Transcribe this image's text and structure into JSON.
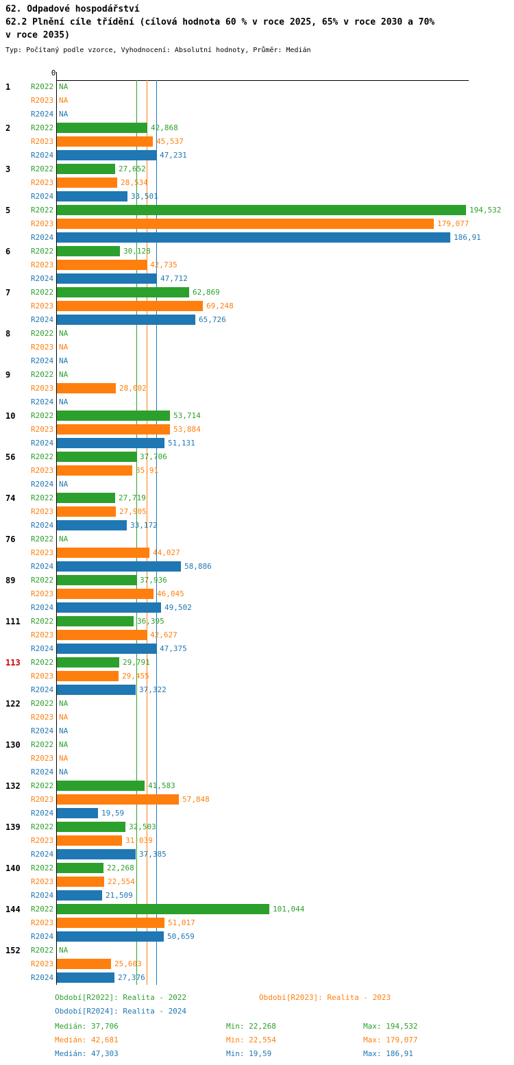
{
  "header": {
    "title": "62. Odpadové hospodářství",
    "subtitle_line1": "62.2 Plnění cíle třídění (cílová hodnota 60 % v roce 2025, 65% v roce 2030 a 70%",
    "subtitle_line2": "v roce 2035)",
    "meta": "Typ: Počítaný podle vzorce, Vyhodnocení: Absolutní hodnoty, Průměr: Medián"
  },
  "chart_data": {
    "type": "bar",
    "orientation": "horizontal",
    "title": "62. Odpadové hospodářství",
    "subtitle": "62.2 Plnění cíle třídění (cílová hodnota 60 % v roce 2025, 65% v roce 2030 a 70% v roce 2035)",
    "x_axis": {
      "origin_label": "0",
      "xlim": [
        0,
        196
      ]
    },
    "grid": false,
    "series": [
      {
        "name": "R2022",
        "color": "#2ca02c"
      },
      {
        "name": "R2023",
        "color": "#ff7f0e"
      },
      {
        "name": "R2024",
        "color": "#1f77b4"
      }
    ],
    "groups": [
      {
        "id": "1",
        "values": [
          null,
          null,
          null
        ],
        "value_labels": [
          "NA",
          "NA",
          "NA"
        ]
      },
      {
        "id": "2",
        "values": [
          42.868,
          45.537,
          47.231
        ],
        "value_labels": [
          "42,868",
          "45,537",
          "47,231"
        ]
      },
      {
        "id": "3",
        "values": [
          27.652,
          28.534,
          33.501
        ],
        "value_labels": [
          "27,652",
          "28,534",
          "33,501"
        ]
      },
      {
        "id": "5",
        "values": [
          194.532,
          179.077,
          186.91
        ],
        "value_labels": [
          "194,532",
          "179,077",
          "186,91"
        ]
      },
      {
        "id": "6",
        "values": [
          30.128,
          42.735,
          47.712
        ],
        "value_labels": [
          "30,128",
          "42,735",
          "47,712"
        ]
      },
      {
        "id": "7",
        "values": [
          62.869,
          69.248,
          65.726
        ],
        "value_labels": [
          "62,869",
          "69,248",
          "65,726"
        ]
      },
      {
        "id": "8",
        "values": [
          null,
          null,
          null
        ],
        "value_labels": [
          "NA",
          "NA",
          "NA"
        ]
      },
      {
        "id": "9",
        "values": [
          null,
          28.002,
          null
        ],
        "value_labels": [
          "NA",
          "28,002",
          "NA"
        ]
      },
      {
        "id": "10",
        "values": [
          53.714,
          53.884,
          51.131
        ],
        "value_labels": [
          "53,714",
          "53,884",
          "51,131"
        ]
      },
      {
        "id": "56",
        "values": [
          37.706,
          35.91,
          null
        ],
        "value_labels": [
          "37,706",
          "35,91",
          "NA"
        ]
      },
      {
        "id": "74",
        "values": [
          27.719,
          27.905,
          33.172
        ],
        "value_labels": [
          "27,719",
          "27,905",
          "33,172"
        ]
      },
      {
        "id": "76",
        "values": [
          null,
          44.027,
          58.886
        ],
        "value_labels": [
          "NA",
          "44,027",
          "58,886"
        ]
      },
      {
        "id": "89",
        "values": [
          37.936,
          46.045,
          49.502
        ],
        "value_labels": [
          "37,936",
          "46,045",
          "49,502"
        ]
      },
      {
        "id": "111",
        "values": [
          36.395,
          42.627,
          47.375
        ],
        "value_labels": [
          "36,395",
          "42,627",
          "47,375"
        ]
      },
      {
        "id": "113",
        "id_color": "#cc0000",
        "values": [
          29.791,
          29.455,
          37.322
        ],
        "value_labels": [
          "29,791",
          "29,455",
          "37,322"
        ]
      },
      {
        "id": "122",
        "values": [
          null,
          null,
          null
        ],
        "value_labels": [
          "NA",
          "NA",
          "NA"
        ]
      },
      {
        "id": "130",
        "values": [
          null,
          null,
          null
        ],
        "value_labels": [
          "NA",
          "NA",
          "NA"
        ]
      },
      {
        "id": "132",
        "values": [
          41.583,
          57.848,
          19.59
        ],
        "value_labels": [
          "41,583",
          "57,848",
          "19,59"
        ]
      },
      {
        "id": "139",
        "values": [
          32.503,
          31.039,
          37.385
        ],
        "value_labels": [
          "32,503",
          "31,039",
          "37,385"
        ]
      },
      {
        "id": "140",
        "values": [
          22.268,
          22.554,
          21.509
        ],
        "value_labels": [
          "22,268",
          "22,554",
          "21,509"
        ]
      },
      {
        "id": "144",
        "values": [
          101.044,
          51.017,
          50.659
        ],
        "value_labels": [
          "101,044",
          "51,017",
          "50,659"
        ]
      },
      {
        "id": "152",
        "values": [
          null,
          25.603,
          27.376
        ],
        "value_labels": [
          "NA",
          "25,603",
          "27,376"
        ]
      }
    ],
    "reference_lines": [
      {
        "name": "median-2022",
        "value": 37.706,
        "color": "#2ca02c"
      },
      {
        "name": "median-2023",
        "value": 42.681,
        "color": "#ff7f0e"
      },
      {
        "name": "median-2024",
        "value": 47.303,
        "color": "#1f77b4"
      }
    ],
    "legend_position": "bottom",
    "legend": [
      {
        "label": "Období[R2022]: Realita - 2022",
        "color": "#2ca02c",
        "col": 0,
        "row": 0
      },
      {
        "label": "Období[R2023]: Realita - 2023",
        "color": "#ff7f0e",
        "col": 1,
        "row": 0
      },
      {
        "label": "Období[R2024]: Realita - 2024",
        "color": "#1f77b4",
        "col": 0,
        "row": 1
      }
    ],
    "stats": [
      {
        "color": "#2ca02c",
        "median": "Medián: 37,706",
        "min": "Min: 22,268",
        "max": "Max: 194,532"
      },
      {
        "color": "#ff7f0e",
        "median": "Medián: 42,681",
        "min": "Min: 22,554",
        "max": "Max: 179,077"
      },
      {
        "color": "#1f77b4",
        "median": "Medián: 47,303",
        "min": "Min: 19,59",
        "max": "Max: 186,91"
      }
    ]
  }
}
